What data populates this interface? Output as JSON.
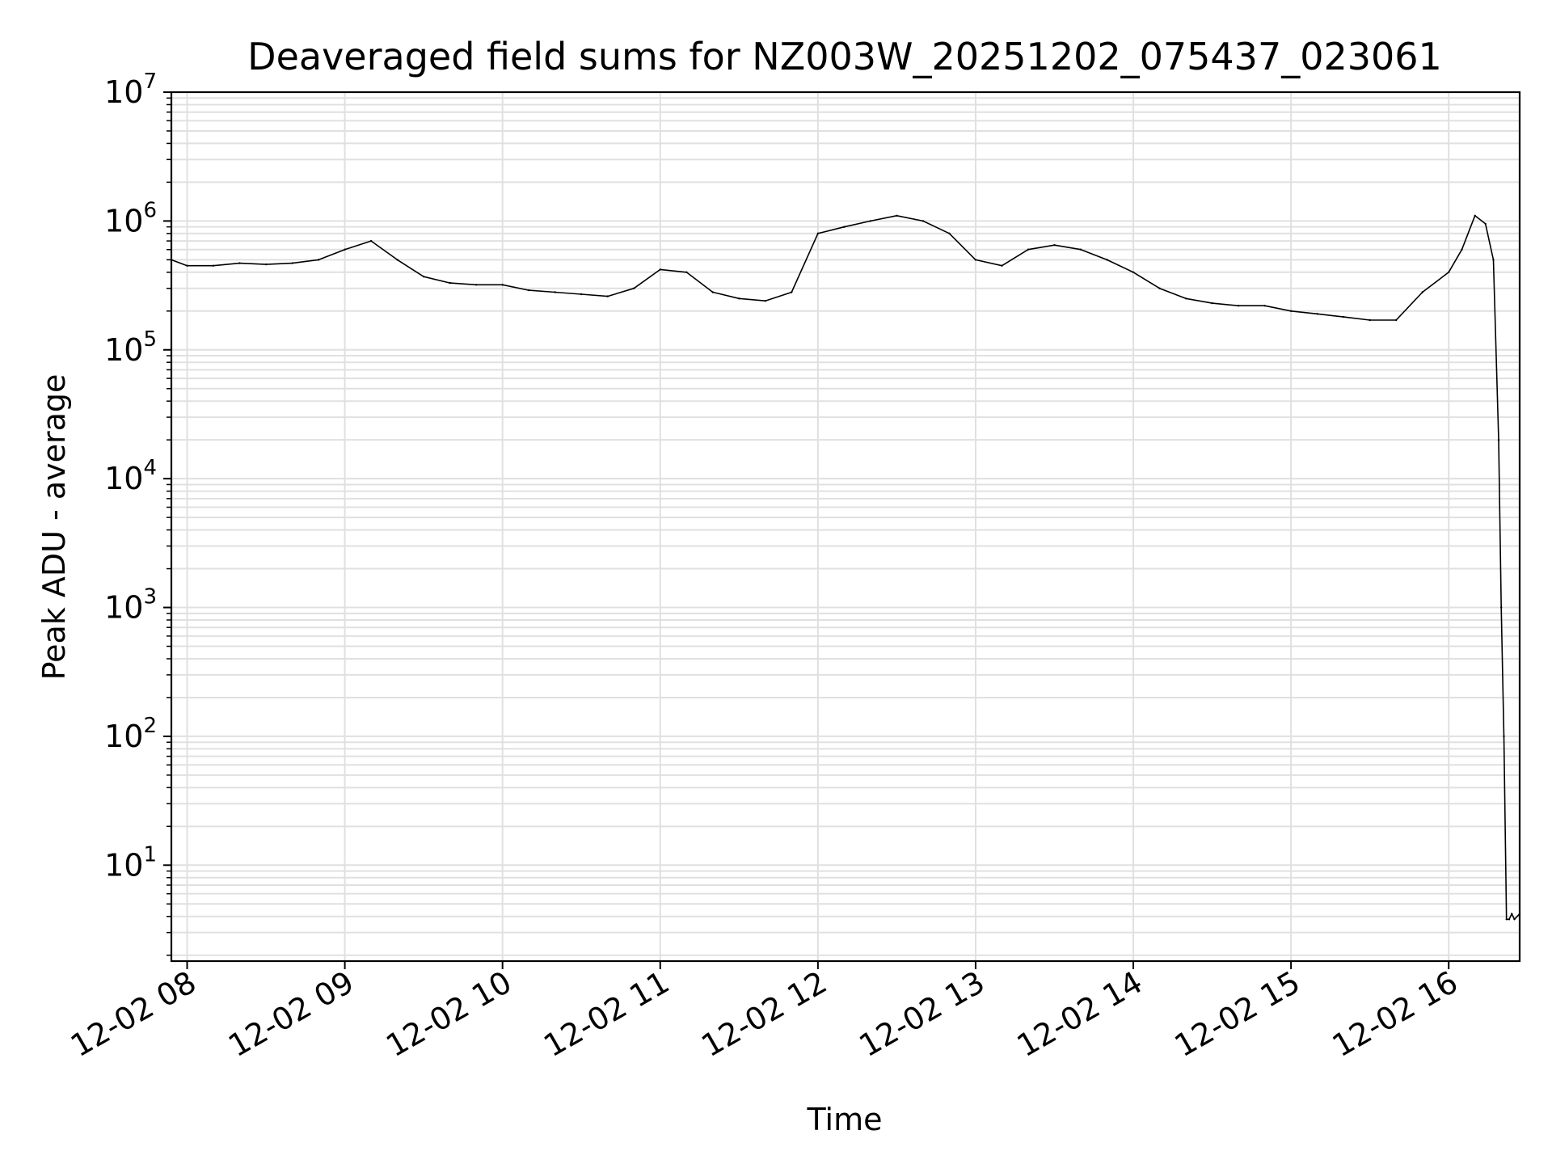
{
  "chart_data": {
    "type": "line",
    "title": "Deaveraged field sums for NZ003W_20251202_075437_023061",
    "xlabel": "Time",
    "ylabel": "Peak ADU - average",
    "yscale": "log",
    "ylim": [
      1.8,
      10000000
    ],
    "xlim": [
      "12-02 07:54",
      "12-02 16:27"
    ],
    "grid": true,
    "line_color": "#000000",
    "grid_color": "#e0e0e0",
    "x_ticks": [
      {
        "label": "12-02 08",
        "hour": 8
      },
      {
        "label": "12-02 09",
        "hour": 9
      },
      {
        "label": "12-02 10",
        "hour": 10
      },
      {
        "label": "12-02 11",
        "hour": 11
      },
      {
        "label": "12-02 12",
        "hour": 12
      },
      {
        "label": "12-02 13",
        "hour": 13
      },
      {
        "label": "12-02 14",
        "hour": 14
      },
      {
        "label": "12-02 15",
        "hour": 15
      },
      {
        "label": "12-02 16",
        "hour": 16
      }
    ],
    "y_ticks": [
      {
        "base": "10",
        "exp": "1",
        "value": 10
      },
      {
        "base": "10",
        "exp": "2",
        "value": 100
      },
      {
        "base": "10",
        "exp": "3",
        "value": 1000
      },
      {
        "base": "10",
        "exp": "4",
        "value": 10000
      },
      {
        "base": "10",
        "exp": "5",
        "value": 100000
      },
      {
        "base": "10",
        "exp": "6",
        "value": 1000000
      },
      {
        "base": "10",
        "exp": "7",
        "value": 10000000
      }
    ],
    "series": [
      {
        "x": [
          "12-02 07:54",
          "12-02 08:00",
          "12-02 08:10",
          "12-02 08:20",
          "12-02 08:30",
          "12-02 08:40",
          "12-02 08:50",
          "12-02 09:00",
          "12-02 09:10",
          "12-02 09:20",
          "12-02 09:30",
          "12-02 09:40",
          "12-02 09:50",
          "12-02 10:00",
          "12-02 10:10",
          "12-02 10:20",
          "12-02 10:30",
          "12-02 10:40",
          "12-02 10:50",
          "12-02 11:00",
          "12-02 11:10",
          "12-02 11:20",
          "12-02 11:30",
          "12-02 11:40",
          "12-02 11:50",
          "12-02 12:00",
          "12-02 12:10",
          "12-02 12:20",
          "12-02 12:30",
          "12-02 12:40",
          "12-02 12:50",
          "12-02 13:00",
          "12-02 13:10",
          "12-02 13:20",
          "12-02 13:30",
          "12-02 13:40",
          "12-02 13:50",
          "12-02 14:00",
          "12-02 14:10",
          "12-02 14:20",
          "12-02 14:30",
          "12-02 14:40",
          "12-02 14:50",
          "12-02 15:00",
          "12-02 15:10",
          "12-02 15:20",
          "12-02 15:30",
          "12-02 15:40",
          "12-02 15:50",
          "12-02 16:00",
          "12-02 16:05",
          "12-02 16:10",
          "12-02 16:14",
          "12-02 16:17",
          "12-02 16:19",
          "12-02 16:20",
          "12-02 16:21",
          "12-02 16:22",
          "12-02 16:23",
          "12-02 16:24",
          "12-02 16:25",
          "12-02 16:27"
        ],
        "y": [
          500000,
          450000,
          450000,
          470000,
          460000,
          470000,
          500000,
          600000,
          700000,
          500000,
          370000,
          330000,
          320000,
          320000,
          290000,
          280000,
          270000,
          260000,
          300000,
          420000,
          400000,
          280000,
          250000,
          240000,
          280000,
          800000,
          900000,
          1000000,
          1100000,
          1000000,
          800000,
          500000,
          450000,
          600000,
          650000,
          600000,
          500000,
          400000,
          300000,
          250000,
          230000,
          220000,
          220000,
          200000,
          190000,
          180000,
          170000,
          170000,
          280000,
          400000,
          600000,
          1100000,
          950000,
          500000,
          20000,
          1000,
          100,
          3.8,
          3.8,
          4.2,
          3.8,
          4.2
        ]
      }
    ]
  }
}
